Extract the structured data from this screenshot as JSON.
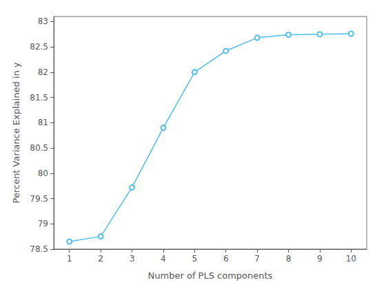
{
  "chart_data": {
    "type": "line",
    "x": [
      1,
      2,
      3,
      4,
      5,
      6,
      7,
      8,
      9,
      10
    ],
    "values": [
      78.65,
      78.75,
      79.72,
      80.9,
      82.0,
      82.42,
      82.68,
      82.74,
      82.75,
      82.76
    ],
    "color": "#4DBEEE",
    "marker": "circle",
    "xlabel": "Number of PLS components",
    "ylabel": "Percent Variance Explained in y",
    "xlim": [
      0.5,
      10.5
    ],
    "ylim": [
      78.5,
      83.1
    ],
    "xticks": [
      1,
      2,
      3,
      4,
      5,
      6,
      7,
      8,
      9,
      10
    ],
    "yticks": [
      78.5,
      79.0,
      79.5,
      80.0,
      80.5,
      81.0,
      81.5,
      82.0,
      82.5,
      83.0
    ],
    "grid": false
  }
}
